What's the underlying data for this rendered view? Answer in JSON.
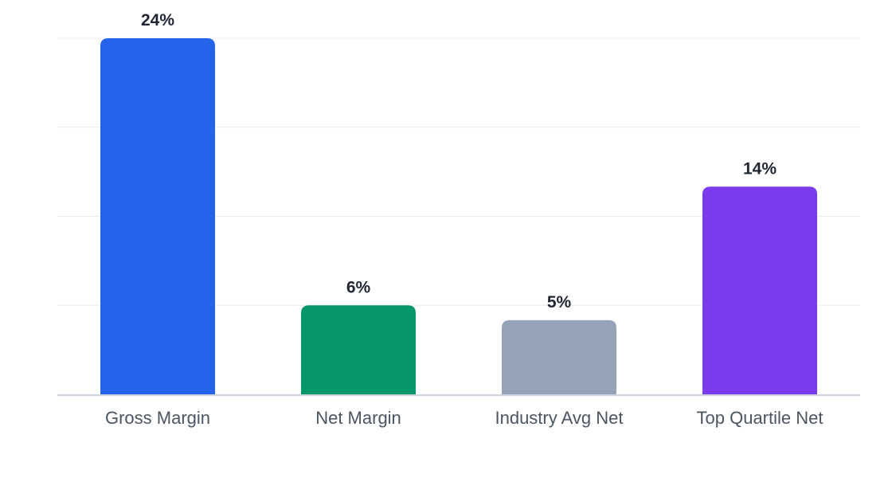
{
  "chart_data": {
    "type": "bar",
    "categories": [
      "Gross Margin",
      "Net Margin",
      "Industry Avg Net",
      "Top Quartile Net"
    ],
    "values": [
      24,
      6,
      5,
      14
    ],
    "value_labels": [
      "24%",
      "6%",
      "5%",
      "14%"
    ],
    "colors": [
      "#2563eb",
      "#059669",
      "#94a3b8",
      "#7c3aed"
    ],
    "title": "",
    "xlabel": "",
    "ylabel": "",
    "ylim": [
      0,
      24
    ],
    "grid": true,
    "legend": "none"
  }
}
